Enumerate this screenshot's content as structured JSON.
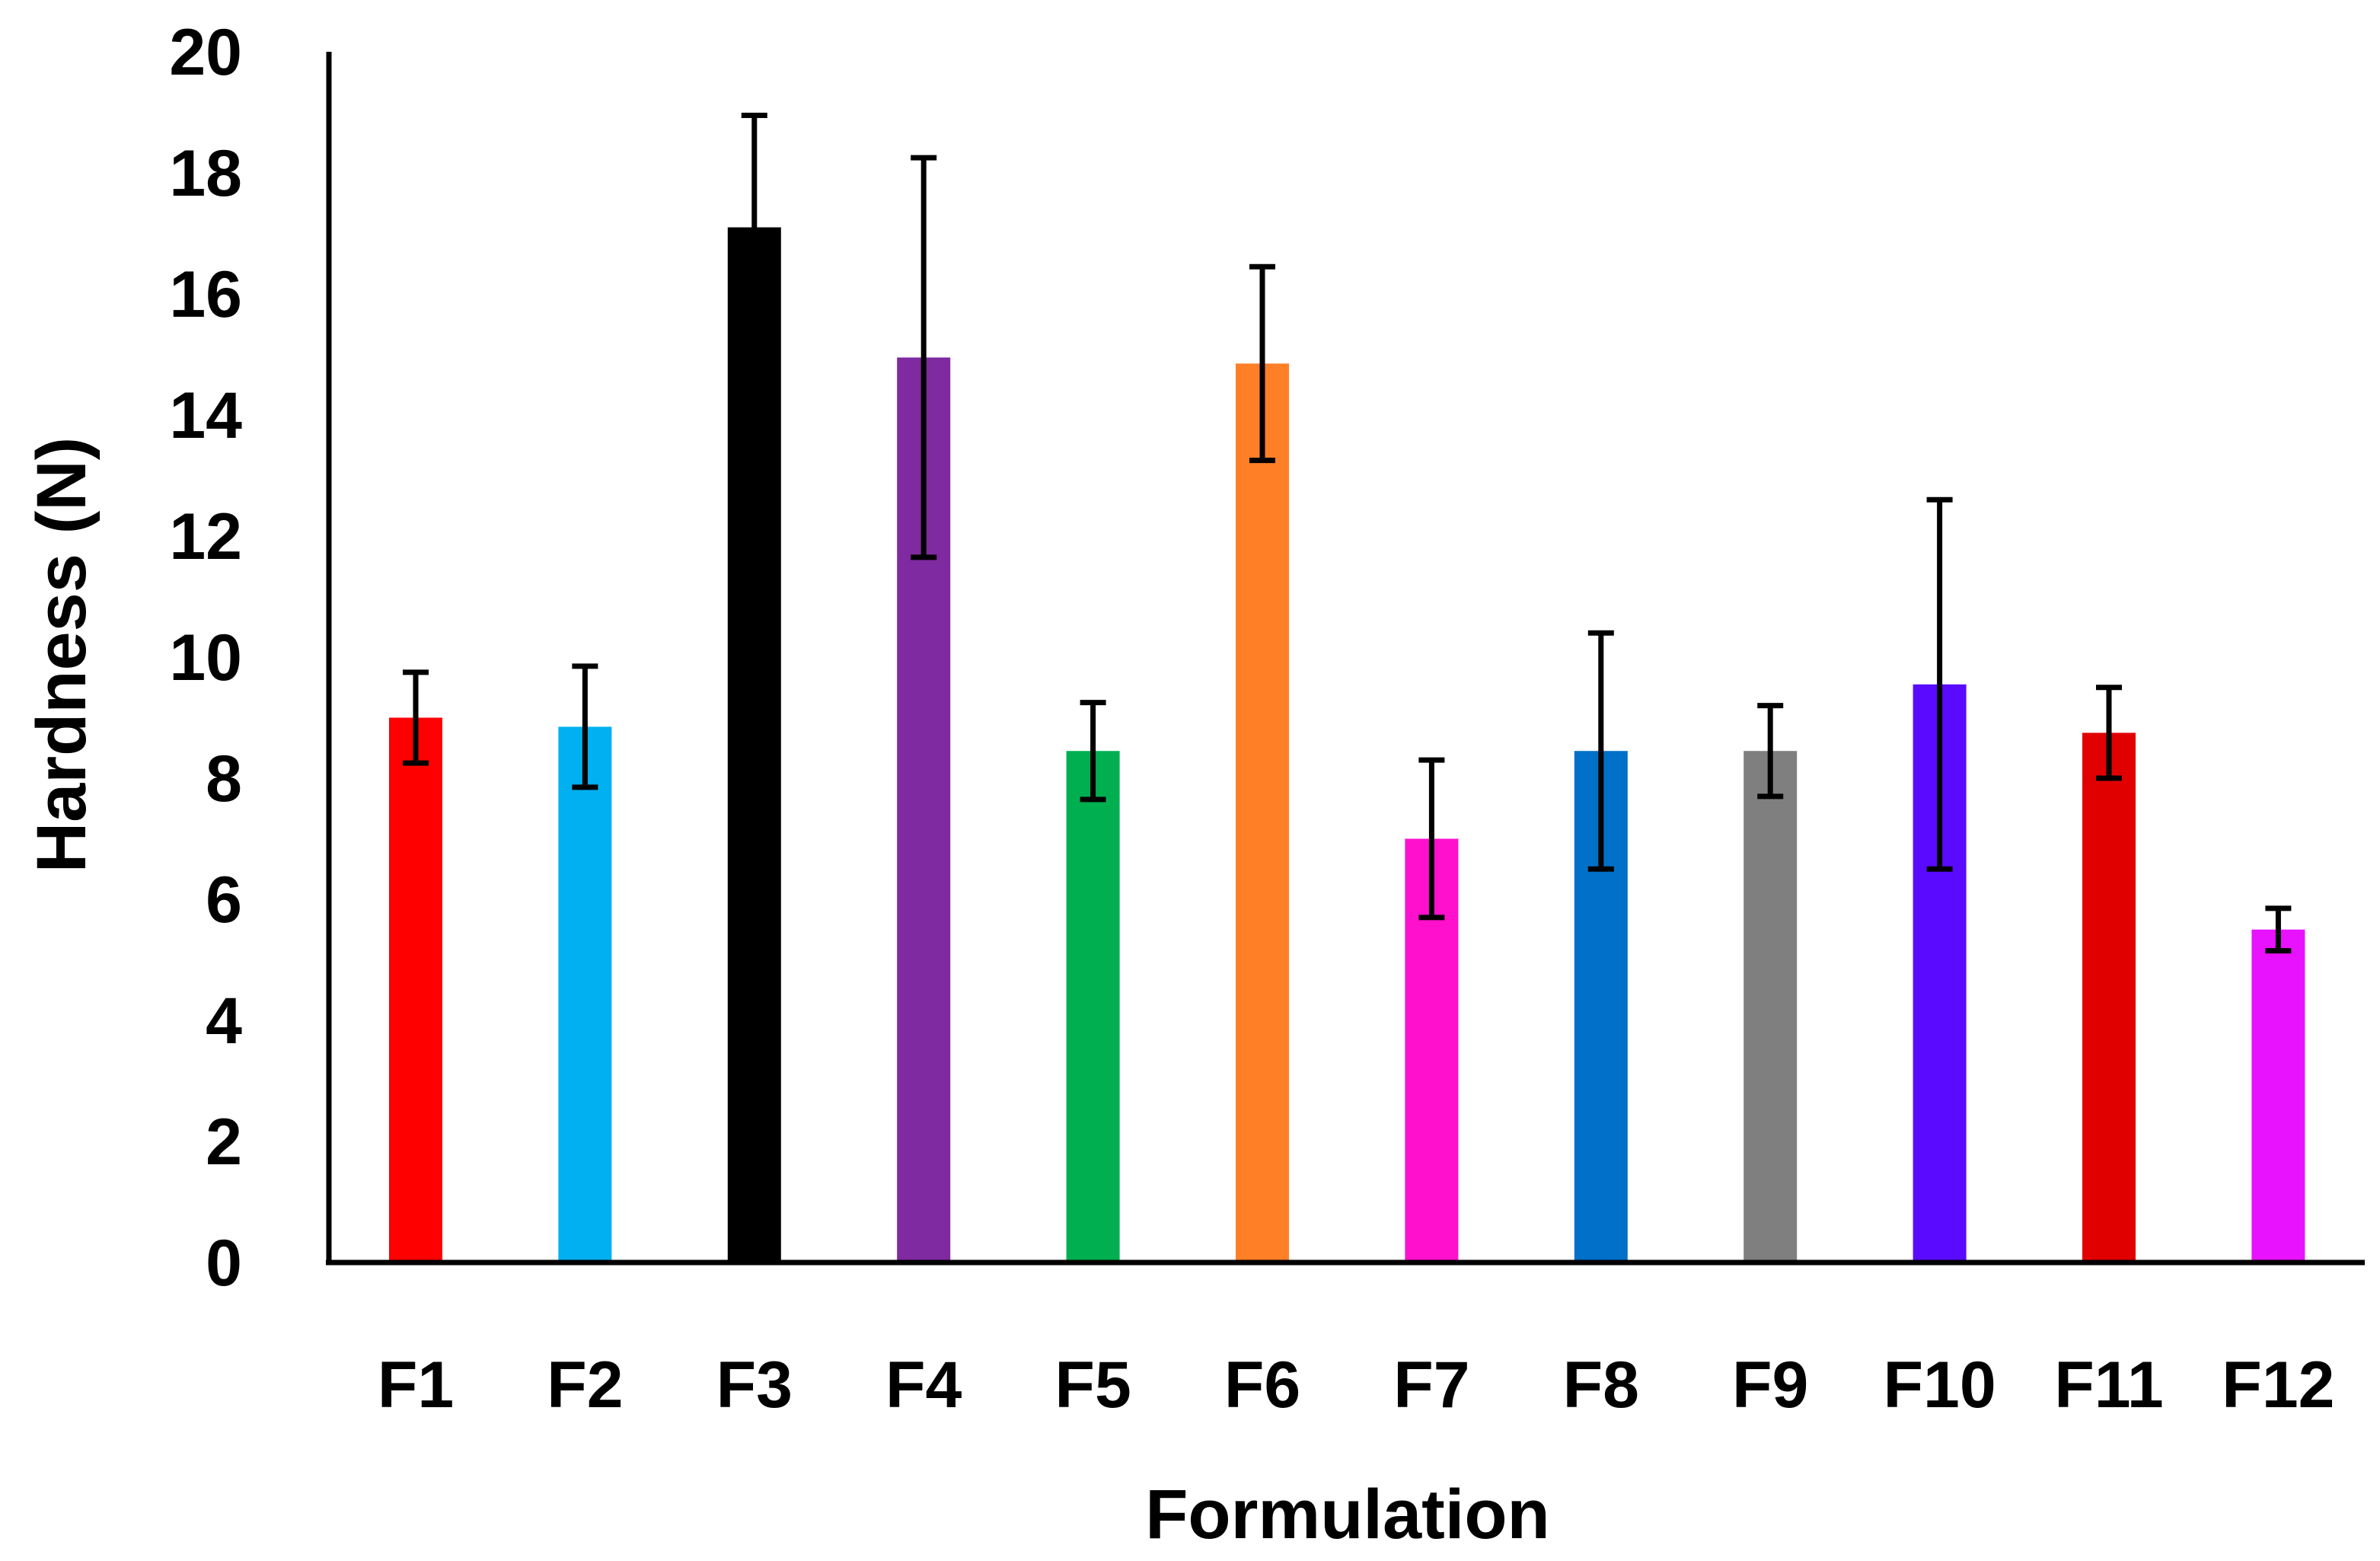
{
  "chart_data": {
    "type": "bar",
    "title": "",
    "xlabel": "Formulation",
    "ylabel": "Hardness (N)",
    "ylim": [
      0,
      20
    ],
    "yticks": [
      0,
      2,
      4,
      6,
      8,
      10,
      12,
      14,
      16,
      18,
      20
    ],
    "grid": false,
    "legend": "none",
    "categories": [
      "F1",
      "F2",
      "F3",
      "F4",
      "F5",
      "F6",
      "F7",
      "F8",
      "F9",
      "F10",
      "F11",
      "F12"
    ],
    "values": [
      9.0,
      8.85,
      17.1,
      14.95,
      8.45,
      14.85,
      7.0,
      8.45,
      8.45,
      9.55,
      8.75,
      5.5
    ],
    "errors": [
      0.75,
      1.0,
      1.85,
      3.3,
      0.8,
      1.6,
      1.3,
      1.95,
      0.75,
      3.05,
      0.75,
      0.35
    ],
    "colors": [
      "#ff0000",
      "#00b0f0",
      "#000000",
      "#7f2aa0",
      "#00b050",
      "#ff7f27",
      "#ff10cc",
      "#0070c8",
      "#7f7f7f",
      "#5a0aff",
      "#e00000",
      "#e812ff"
    ]
  }
}
